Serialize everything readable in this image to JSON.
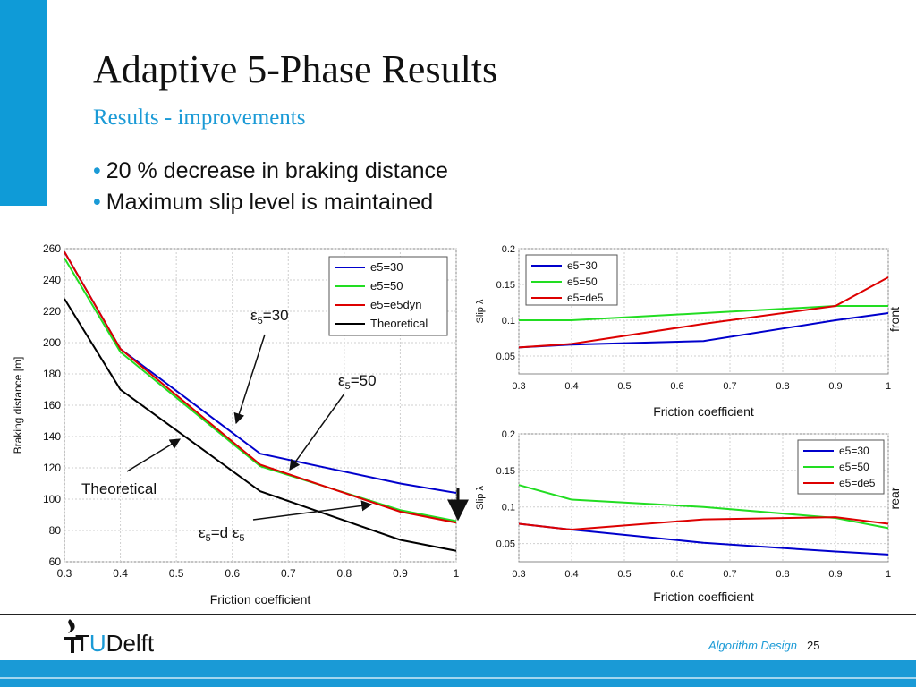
{
  "slide": {
    "title": "Adaptive 5-Phase Results",
    "subtitle": "Results - improvements",
    "bullets": [
      "20 % decrease in braking distance",
      "Maximum slip level is maintained"
    ],
    "bullet_glyph": "•",
    "footer_label": "Algorithm Design",
    "page_number": "25",
    "logo_prefix": "T",
    "logo_u": "U",
    "logo_suffix": "Delft"
  },
  "colors": {
    "accent": "#1a9ad6",
    "corner_bar": "#0f9bd7"
  },
  "chart_data": [
    {
      "type": "line",
      "xlabel": "Friction coefficient",
      "ylabel": "Braking distance [m]",
      "xlim": [
        0.3,
        1
      ],
      "ylim": [
        60,
        260
      ],
      "x_ticks": [
        "0.3",
        "0.4",
        "0.5",
        "0.6",
        "0.7",
        "0.8",
        "0.9",
        "1"
      ],
      "y_ticks": [
        "60",
        "80",
        "100",
        "120",
        "140",
        "160",
        "180",
        "200",
        "220",
        "240",
        "260"
      ],
      "grid": true,
      "legend_position": "top-right",
      "series": [
        {
          "name": "e5=30",
          "color": "#0000cc",
          "x": [
            0.3,
            0.4,
            0.65,
            0.9,
            1.0
          ],
          "y": [
            258,
            196,
            129,
            110,
            104
          ]
        },
        {
          "name": "e5=50",
          "color": "#22dd22",
          "x": [
            0.3,
            0.4,
            0.65,
            0.9,
            1.0
          ],
          "y": [
            254,
            194,
            121,
            93,
            86
          ]
        },
        {
          "name": "e5=e5dyn",
          "color": "#dd0000",
          "x": [
            0.3,
            0.4,
            0.65,
            0.9,
            1.0
          ],
          "y": [
            258,
            196,
            122,
            92,
            85
          ]
        },
        {
          "name": "Theoretical",
          "color": "#000000",
          "x": [
            0.3,
            0.4,
            0.65,
            0.9,
            1.0
          ],
          "y": [
            228,
            170,
            105,
            74,
            67
          ]
        }
      ],
      "annotations": [
        {
          "text": "ε",
          "sub": "5",
          "tail": "=30"
        },
        {
          "text": "ε",
          "sub": "5",
          "tail": "=50"
        },
        {
          "text": "Theoretical",
          "sub": "",
          "tail": ""
        },
        {
          "text": "ε",
          "sub": "5",
          "tail": "=d ε",
          "sub2": "5"
        }
      ]
    },
    {
      "type": "line",
      "xlabel": "Friction coefficient",
      "ylabel": "Slip λ",
      "side_label": "front",
      "xlim": [
        0.3,
        1
      ],
      "ylim": [
        0.025,
        0.2
      ],
      "x_ticks": [
        "0.3",
        "0.4",
        "0.5",
        "0.6",
        "0.7",
        "0.8",
        "0.9",
        "1"
      ],
      "y_ticks": [
        "0.05",
        "0.1",
        "0.15",
        "0.2"
      ],
      "grid": true,
      "legend_position": "top-left",
      "series": [
        {
          "name": "e5=30",
          "color": "#0000cc",
          "x": [
            0.3,
            0.4,
            0.65,
            0.9,
            1.0
          ],
          "y": [
            0.062,
            0.066,
            0.071,
            0.1,
            0.11
          ]
        },
        {
          "name": "e5=50",
          "color": "#22dd22",
          "x": [
            0.3,
            0.4,
            0.65,
            0.9,
            1.0
          ],
          "y": [
            0.1,
            0.1,
            0.11,
            0.12,
            0.12
          ]
        },
        {
          "name": "e5=de5",
          "color": "#dd0000",
          "x": [
            0.3,
            0.4,
            0.65,
            0.9,
            1.0
          ],
          "y": [
            0.062,
            0.067,
            0.095,
            0.12,
            0.16
          ]
        }
      ]
    },
    {
      "type": "line",
      "xlabel": "Friction coefficient",
      "ylabel": "Slip λ",
      "side_label": "rear",
      "xlim": [
        0.3,
        1
      ],
      "ylim": [
        0.025,
        0.2
      ],
      "x_ticks": [
        "0.3",
        "0.4",
        "0.5",
        "0.6",
        "0.7",
        "0.8",
        "0.9",
        "1"
      ],
      "y_ticks": [
        "0.05",
        "0.1",
        "0.15",
        "0.2"
      ],
      "grid": true,
      "legend_position": "top-right",
      "series": [
        {
          "name": "e5=30",
          "color": "#0000cc",
          "x": [
            0.3,
            0.4,
            0.65,
            0.9,
            1.0
          ],
          "y": [
            0.077,
            0.069,
            0.051,
            0.039,
            0.035
          ]
        },
        {
          "name": "e5=50",
          "color": "#22dd22",
          "x": [
            0.3,
            0.4,
            0.65,
            0.9,
            1.0
          ],
          "y": [
            0.13,
            0.11,
            0.1,
            0.085,
            0.071
          ]
        },
        {
          "name": "e5=de5",
          "color": "#dd0000",
          "x": [
            0.3,
            0.4,
            0.65,
            0.9,
            1.0
          ],
          "y": [
            0.077,
            0.069,
            0.083,
            0.086,
            0.077
          ]
        }
      ]
    }
  ]
}
